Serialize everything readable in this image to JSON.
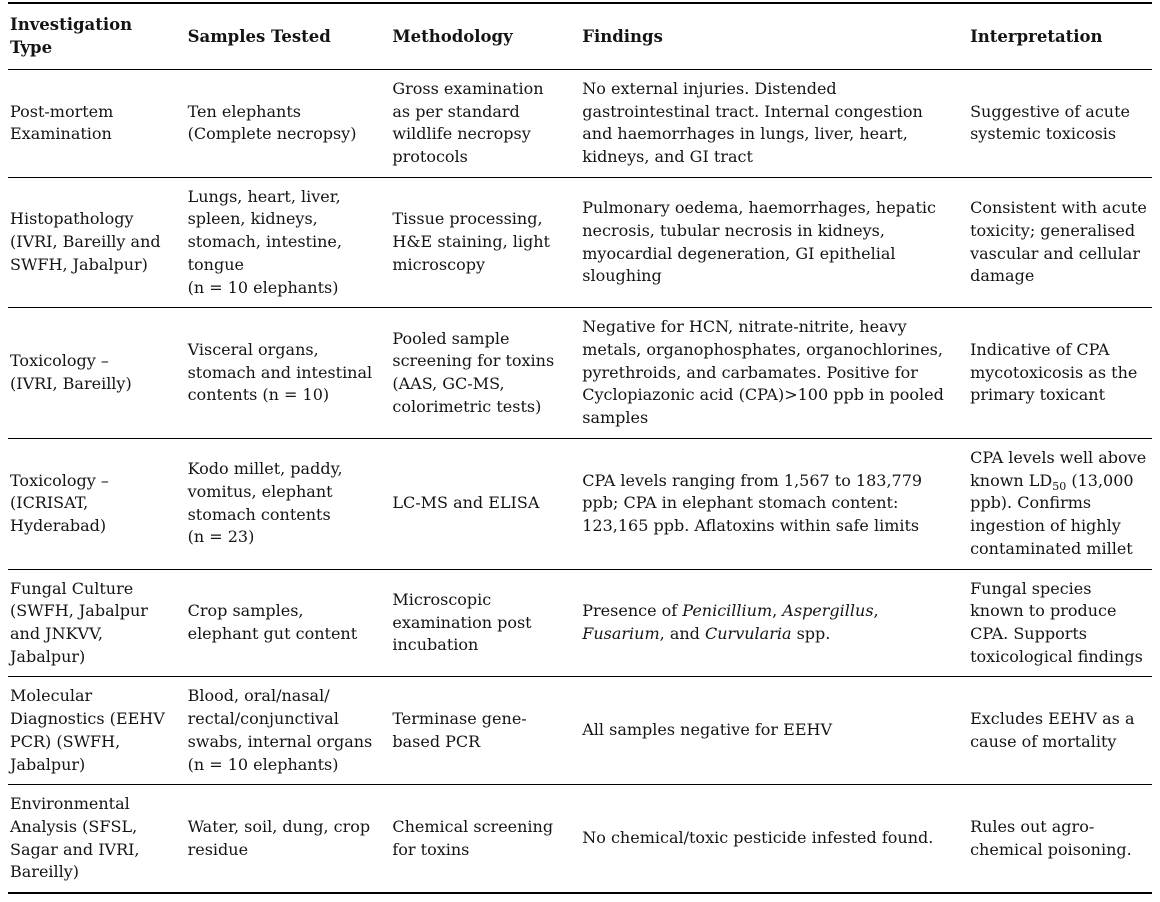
{
  "colors": {
    "background": "#ffffff",
    "text": "#141414",
    "rule": "#000000"
  },
  "table": {
    "headers": [
      "Investigation Type",
      "Samples Tested",
      "Methodology",
      "Findings",
      "Interpretation"
    ],
    "rows": [
      {
        "investigation_type": "Post-mortem\nExamination",
        "samples_tested": "Ten elephants (Complete necropsy)",
        "methodology": "Gross examination as per standard wildlife necropsy protocols",
        "findings": "No external injuries. Distended gastrointestinal tract. Internal congestion and haemorrhages in lungs, liver, heart, kidneys, and GI tract",
        "interpretation": "Suggestive of acute systemic toxicosis"
      },
      {
        "investigation_type": "Histopathology\n(IVRI, Bareilly and\nSWFH, Jabalpur)",
        "samples_tested": "Lungs, heart, liver, spleen, kidneys, stomach, intestine, tongue\n(n = 10 elephants)",
        "methodology": "Tissue processing, H&E staining, light microscopy",
        "findings": "Pulmonary oedema, haemorrhages, hepatic necrosis, tubular necrosis in kidneys, myocardial degeneration, GI epithelial sloughing",
        "interpretation": "Consistent with acute toxicity; generalised vascular and cellular damage"
      },
      {
        "investigation_type": "Toxicology –\n(IVRI, Bareilly)",
        "samples_tested": "Visceral organs, stomach and intestinal contents (n = 10)",
        "methodology": "Pooled sample screening for toxins (AAS, GC-MS, colorimetric tests)",
        "findings": "Negative for HCN, nitrate-nitrite, heavy metals, organophosphates, organochlorines, pyrethroids, and carbamates. Positive for Cyclopiazonic acid (CPA)>100 ppb in pooled samples",
        "interpretation": "Indicative of CPA mycotoxicosis as the primary toxicant"
      },
      {
        "investigation_type": "Toxicology –\n(ICRISAT,\nHyderabad)",
        "samples_tested": "Kodo millet, paddy, vomitus, elephant stomach contents\n(n = 23)",
        "methodology": "LC-MS and ELISA",
        "findings": "CPA levels ranging from 1,567 to 183,779 ppb; CPA in elephant stomach content: 123,165 ppb. Aflatoxins within safe limits",
        "interpretation_segments": [
          {
            "text": "CPA levels well above known LD"
          },
          {
            "text": "50",
            "sub": true
          },
          {
            "text": " (13,000 ppb). Confirms ingestion of highly contaminated millet"
          }
        ]
      },
      {
        "investigation_type": "Fungal Culture\n(SWFH, Jabalpur\nand JNKVV,\nJabalpur)",
        "samples_tested": "Crop samples, elephant gut content",
        "methodology": "Microscopic examination post incubation",
        "findings_segments": [
          {
            "text": "Presence of "
          },
          {
            "text": "Penicillium",
            "italic": true
          },
          {
            "text": ", "
          },
          {
            "text": "Aspergillus",
            "italic": true
          },
          {
            "text": ", "
          },
          {
            "text": "Fusarium",
            "italic": true
          },
          {
            "text": ", and "
          },
          {
            "text": "Curvularia",
            "italic": true
          },
          {
            "text": " spp."
          }
        ],
        "interpretation": "Fungal species known to produce CPA. Supports toxicological findings"
      },
      {
        "investigation_type": "Molecular Diagnostics (EEHV PCR) (SWFH,\nJabalpur)",
        "samples_tested": "Blood, oral/nasal/\nrectal/conjunctival swabs, internal organs (n = 10 elephants)",
        "methodology": "Terminase gene-based PCR",
        "findings": "All samples negative for EEHV",
        "interpretation": "Excludes EEHV as a cause of mortality"
      },
      {
        "investigation_type": "Environmental\nAnalysis (SFSL,\nSagar and IVRI,\nBareilly)",
        "samples_tested": "Water, soil, dung, crop residue",
        "methodology": "Chemical screening for toxins",
        "findings": "No chemical/toxic pesticide infested found.",
        "interpretation": "Rules out agro-chemical poisoning."
      }
    ]
  }
}
